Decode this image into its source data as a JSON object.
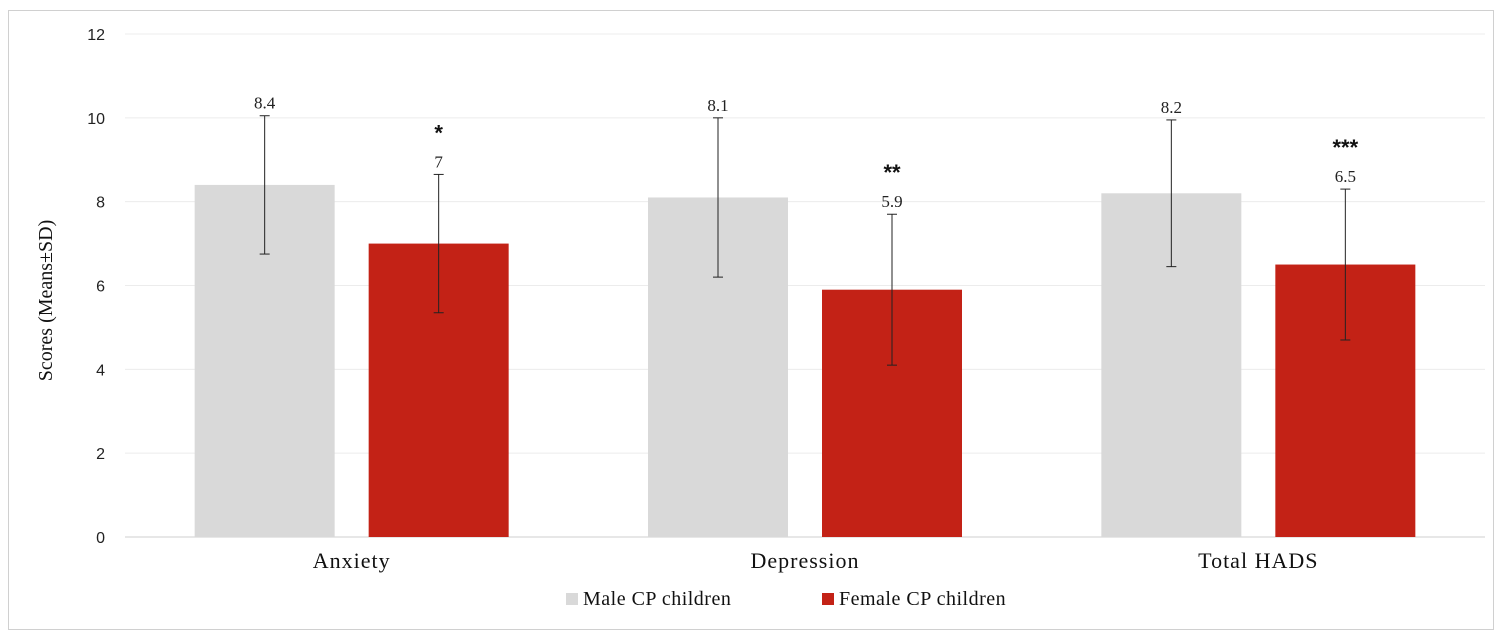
{
  "chart_data": {
    "type": "bar",
    "title": "",
    "xlabel": "",
    "ylabel": "Scores (Means±SD)",
    "ylim": [
      0,
      12
    ],
    "yticks": [
      0,
      2,
      4,
      6,
      8,
      10,
      12
    ],
    "grid": true,
    "legend_position": "bottom",
    "categories": [
      "Anxiety",
      "Depression",
      "Total HADS"
    ],
    "series": [
      {
        "name": "Male CP children",
        "color": "#d9d9d9",
        "values": [
          8.4,
          8.1,
          8.2
        ],
        "error_low": [
          6.75,
          6.2,
          6.45
        ],
        "error_high": [
          10.05,
          10.0,
          9.95
        ],
        "labels": [
          "8.4",
          "8.1",
          "8.2"
        ]
      },
      {
        "name": "Female CP children",
        "color": "#c32216",
        "values": [
          7,
          5.9,
          6.5
        ],
        "error_low": [
          5.35,
          4.1,
          4.7
        ],
        "error_high": [
          8.65,
          7.7,
          8.3
        ],
        "labels": [
          "7",
          "5.9",
          "6.5"
        ]
      }
    ],
    "annotations": [
      "*",
      "**",
      "***"
    ]
  }
}
